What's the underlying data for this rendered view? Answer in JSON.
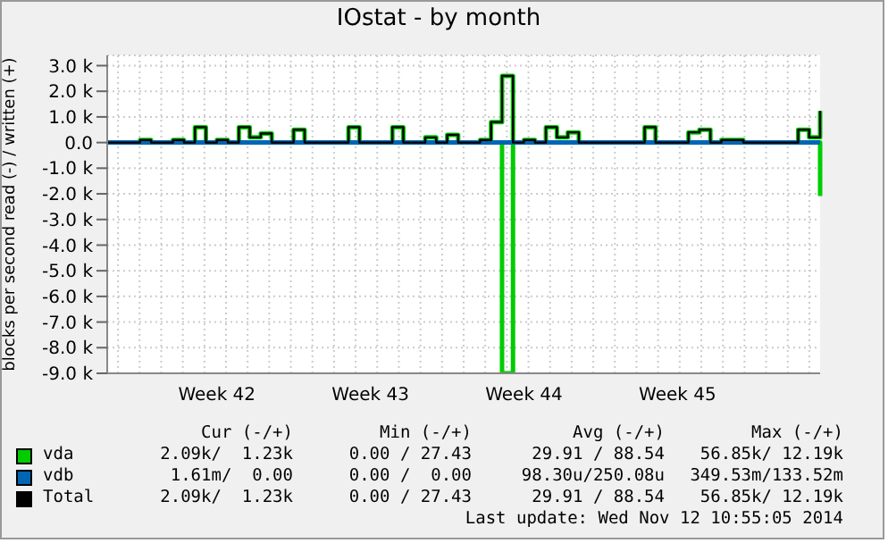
{
  "chart_data": {
    "type": "step",
    "title": "IOstat - by month",
    "ylabel": "blocks per second read (-) / written (+)",
    "categories": [
      null,
      null,
      null,
      null,
      null,
      null,
      null,
      null,
      null,
      null,
      "Week 42",
      null,
      null,
      null,
      null,
      null,
      null,
      null,
      null,
      null,
      null,
      null,
      null,
      null,
      "Week 43",
      null,
      null,
      null,
      null,
      null,
      null,
      null,
      null,
      null,
      null,
      null,
      null,
      null,
      "Week 44",
      null,
      null,
      null,
      null,
      null,
      null,
      null,
      null,
      null,
      null,
      null,
      null,
      null,
      "Week 45",
      null,
      null,
      null,
      null,
      null,
      null,
      null,
      null,
      null,
      null,
      null,
      null,
      null
    ],
    "ylim": [
      -9000,
      3400
    ],
    "yticks": [
      {
        "value": -9000,
        "label": "-9.0 k"
      },
      {
        "value": -8000,
        "label": "-8.0 k"
      },
      {
        "value": -7000,
        "label": "-7.0 k"
      },
      {
        "value": -6000,
        "label": "-6.0 k"
      },
      {
        "value": -5000,
        "label": "-5.0 k"
      },
      {
        "value": -4000,
        "label": "-4.0 k"
      },
      {
        "value": -3000,
        "label": "-3.0 k"
      },
      {
        "value": -2000,
        "label": "-2.0 k"
      },
      {
        "value": -1000,
        "label": "-1.0 k"
      },
      {
        "value": 0,
        "label": "0.0"
      },
      {
        "value": 1000,
        "label": "1.0 k"
      },
      {
        "value": 2000,
        "label": "2.0 k"
      },
      {
        "value": 3000,
        "label": "3.0 k"
      }
    ],
    "grid": true,
    "legend": "bottom",
    "series": [
      {
        "name": "vda",
        "color": "#00cc00",
        "values": [
          0,
          0,
          0,
          100,
          0,
          0,
          100,
          0,
          600,
          0,
          100,
          0,
          600,
          200,
          350,
          0,
          0,
          500,
          0,
          0,
          0,
          0,
          600,
          0,
          0,
          0,
          600,
          0,
          0,
          200,
          0,
          300,
          0,
          0,
          100,
          800,
          2600,
          0,
          100,
          0,
          600,
          200,
          400,
          0,
          0,
          0,
          0,
          0,
          0,
          600,
          0,
          0,
          0,
          400,
          500,
          0,
          100,
          100,
          0,
          0,
          0,
          0,
          0,
          500,
          200,
          1230
        ]
      },
      {
        "color": "#00cc00",
        "values": [
          0,
          0,
          0,
          0,
          0,
          0,
          0,
          0,
          0,
          0,
          0,
          0,
          0,
          0,
          0,
          0,
          0,
          0,
          0,
          0,
          0,
          0,
          0,
          0,
          0,
          0,
          0,
          0,
          0,
          0,
          0,
          0,
          0,
          0,
          0,
          0,
          -9000,
          0,
          0,
          0,
          0,
          0,
          0,
          0,
          0,
          0,
          0,
          0,
          0,
          0,
          0,
          0,
          0,
          0,
          0,
          0,
          0,
          0,
          0,
          0,
          0,
          0,
          0,
          0,
          0,
          -2090
        ]
      },
      {
        "name": "vdb",
        "color": "#0066b3",
        "values": [
          0,
          0,
          0,
          0,
          0,
          0,
          0,
          0,
          0,
          0,
          0,
          0,
          0,
          0,
          0,
          0,
          0,
          0,
          0,
          0,
          0,
          0,
          0,
          0,
          0,
          0,
          0,
          0,
          0,
          0,
          0,
          0,
          0,
          0,
          0,
          0,
          0,
          0,
          0,
          0,
          0,
          0,
          0,
          0,
          0,
          0,
          0,
          0,
          0,
          0,
          0,
          0,
          0,
          0,
          0,
          0,
          0,
          0,
          0,
          0,
          0,
          0,
          0,
          0,
          0,
          0
        ]
      },
      {
        "name": "Total",
        "color": "#000000",
        "values": [
          0,
          0,
          0,
          100,
          0,
          0,
          100,
          0,
          600,
          0,
          100,
          0,
          600,
          200,
          350,
          0,
          0,
          500,
          0,
          0,
          0,
          0,
          600,
          0,
          0,
          0,
          600,
          0,
          0,
          200,
          0,
          300,
          0,
          0,
          100,
          800,
          2600,
          0,
          100,
          0,
          600,
          200,
          400,
          0,
          0,
          0,
          0,
          0,
          0,
          600,
          0,
          0,
          0,
          400,
          500,
          0,
          100,
          100,
          0,
          0,
          0,
          0,
          0,
          500,
          200,
          1230
        ]
      }
    ],
    "annotations": [
      "Cur (-/+)",
      "Min (-/+)",
      "Avg (-/+)",
      "Max (-/+)",
      "2.09k/  1.23k",
      "0.00 / 27.43",
      "29.91 / 88.54",
      "56.85k/ 12.19k",
      "1.61m/  0.00",
      "0.00 /  0.00",
      "98.30u/250.08u",
      "349.53m/133.52m",
      "2.09k/  1.23k",
      "0.00 / 27.43",
      "29.91 / 88.54",
      "56.85k/ 12.19k",
      "Last update: Wed Nov 12 10:55:05 2014"
    ]
  }
}
